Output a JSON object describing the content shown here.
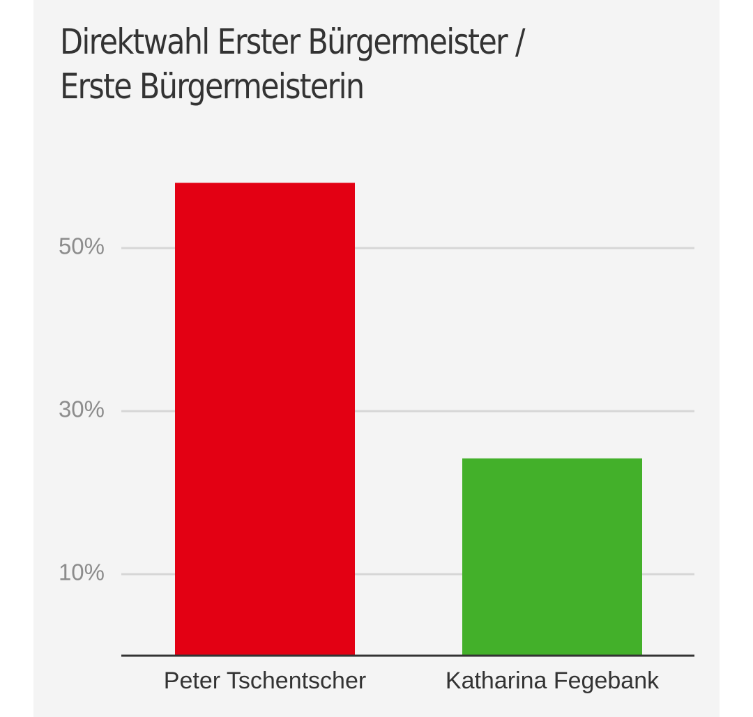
{
  "chart_data": {
    "type": "bar",
    "title": "Direktwahl Erster Bürgermeister / Erste Bürgermeisterin",
    "categories": [
      "Peter Tschentscher",
      "Katharina Fegebank"
    ],
    "values": [
      58,
      24.2
    ],
    "colors": [
      "#e30013",
      "#43b02a"
    ],
    "y_ticks": [
      10,
      30,
      50
    ],
    "y_tick_labels": [
      "10%",
      "30%",
      "50%"
    ],
    "ylim": [
      0,
      60
    ],
    "grid": true,
    "xlabel": "",
    "ylabel": "",
    "axis_color": "#333333",
    "grid_color": "#d6d6d6"
  }
}
